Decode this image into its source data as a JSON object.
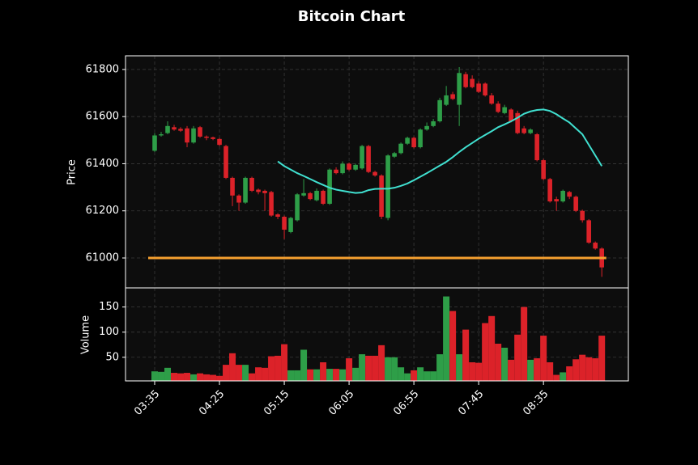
{
  "chart_data": {
    "type": "candlestick",
    "title": "Bitcoin Chart",
    "categories": [
      "03:35",
      null,
      null,
      null,
      null,
      null,
      null,
      null,
      null,
      null,
      "04:25",
      null,
      null,
      null,
      null,
      null,
      null,
      null,
      null,
      null,
      "05:15",
      null,
      null,
      null,
      null,
      null,
      null,
      null,
      null,
      null,
      "06:05",
      null,
      null,
      null,
      null,
      null,
      null,
      null,
      null,
      null,
      "06:55",
      null,
      null,
      null,
      null,
      null,
      null,
      null,
      null,
      null,
      "07:45",
      null,
      null,
      null,
      null,
      null,
      null,
      null,
      null,
      null,
      "08:35",
      null,
      null,
      null,
      null,
      null,
      null,
      null,
      null,
      null
    ],
    "open": [
      61455,
      61520,
      61530,
      61555,
      61548,
      61550,
      61490,
      61555,
      61515,
      61512,
      61505,
      61475,
      61340,
      61265,
      61235,
      61340,
      61290,
      61285,
      61280,
      61185,
      61175,
      61110,
      61160,
      61265,
      61275,
      61245,
      61285,
      61230,
      61375,
      61360,
      61400,
      61375,
      61380,
      61475,
      61365,
      61350,
      61170,
      61430,
      61445,
      61485,
      61510,
      61470,
      61545,
      61560,
      61580,
      61650,
      61695,
      61650,
      61780,
      61760,
      61740,
      61740,
      61690,
      61655,
      61615,
      61630,
      61615,
      61550,
      61530,
      61525,
      61415,
      61335,
      61250,
      61240,
      61280,
      61260,
      61200,
      61160,
      61065,
      61040
    ],
    "high": [
      61530,
      61535,
      61580,
      61565,
      61555,
      61560,
      61560,
      61560,
      61520,
      61515,
      61510,
      61480,
      61345,
      61270,
      61345,
      61345,
      61295,
      61290,
      61285,
      61190,
      61180,
      61175,
      61275,
      61335,
      61280,
      61295,
      61290,
      61380,
      61385,
      61410,
      61405,
      61400,
      61480,
      61480,
      61370,
      61355,
      61440,
      61450,
      61490,
      61515,
      61515,
      61550,
      61575,
      61590,
      61680,
      61730,
      61705,
      61810,
      61790,
      61775,
      61750,
      61745,
      61700,
      61665,
      61650,
      61635,
      61625,
      61560,
      61550,
      61530,
      61420,
      61340,
      61260,
      61290,
      61285,
      61265,
      61205,
      61165,
      61070,
      61045
    ],
    "low": [
      61450,
      61515,
      61525,
      61540,
      61535,
      61470,
      61485,
      61510,
      61500,
      61500,
      61475,
      61335,
      61220,
      61200,
      61230,
      61280,
      61270,
      61200,
      61175,
      61165,
      61080,
      61105,
      61155,
      61260,
      61245,
      61240,
      61225,
      61225,
      61355,
      61355,
      61370,
      61370,
      61375,
      61360,
      61345,
      61165,
      61160,
      61425,
      61440,
      61480,
      61465,
      61465,
      61540,
      61555,
      61575,
      61645,
      61670,
      61560,
      61720,
      61720,
      61700,
      61685,
      61650,
      61615,
      61610,
      61575,
      61525,
      61525,
      61525,
      61410,
      61330,
      61235,
      61200,
      61235,
      61250,
      61195,
      61150,
      61060,
      61035,
      60920
    ],
    "close": [
      61520,
      61525,
      61560,
      61545,
      61540,
      61490,
      61550,
      61515,
      61510,
      61505,
      61480,
      61340,
      61265,
      61235,
      61340,
      61285,
      61280,
      61275,
      61180,
      61175,
      61120,
      61170,
      61270,
      61275,
      61250,
      61285,
      61230,
      61375,
      61360,
      61400,
      61375,
      61395,
      61475,
      61365,
      61350,
      61175,
      61435,
      61445,
      61485,
      61510,
      61470,
      61545,
      61560,
      61580,
      61670,
      61690,
      61675,
      61785,
      61725,
      61725,
      61705,
      61690,
      61655,
      61620,
      61640,
      61580,
      61530,
      61530,
      61545,
      61415,
      61335,
      61240,
      61240,
      61285,
      61260,
      61200,
      61160,
      61065,
      61040,
      60960
    ],
    "volume": [
      22,
      21,
      29,
      19,
      18,
      19,
      16,
      18,
      16,
      15,
      13,
      35,
      58,
      35,
      35,
      18,
      30,
      29,
      52,
      53,
      76,
      24,
      24,
      65,
      26,
      26,
      40,
      27,
      27,
      26,
      48,
      29,
      56,
      53,
      53,
      74,
      50,
      50,
      30,
      18,
      24,
      30,
      22,
      22,
      56,
      171,
      142,
      56,
      105,
      40,
      39,
      118,
      132,
      77,
      69,
      45,
      95,
      150,
      45,
      48,
      93,
      40,
      15,
      20,
      32,
      46,
      55,
      50,
      48,
      93
    ],
    "up_color": "#2e9e48",
    "down_color": "#dc2229",
    "moving_average": {
      "color": "#40e0d0",
      "values": [
        null,
        null,
        null,
        null,
        null,
        null,
        null,
        null,
        null,
        null,
        null,
        null,
        null,
        null,
        null,
        null,
        null,
        null,
        null,
        61410,
        61390,
        61375,
        61360,
        61348,
        61335,
        61322,
        61310,
        61298,
        61290,
        61285,
        61280,
        61276,
        61278,
        61288,
        61293,
        61294,
        61294,
        61298,
        61306,
        61316,
        61330,
        61345,
        61360,
        61376,
        61392,
        61408,
        61428,
        61450,
        61470,
        61488,
        61506,
        61522,
        61538,
        61555,
        61567,
        61580,
        61595,
        61612,
        61622,
        61628,
        61630,
        61624,
        61610,
        61592,
        61575,
        61550,
        61525,
        61480,
        61435,
        61390
      ]
    },
    "hline": {
      "value": 61000,
      "color": "#f5a030"
    },
    "xlim": [
      -4.5,
      73.1
    ],
    "ylabel": "Price",
    "ylim": [
      60873,
      61858
    ],
    "yticks": [
      61000,
      61200,
      61400,
      61600,
      61800
    ],
    "volume_ylabel": "Volume",
    "volume_ylim": [
      3,
      188
    ],
    "volume_yticks": [
      50,
      100,
      150
    ],
    "grid": true
  }
}
